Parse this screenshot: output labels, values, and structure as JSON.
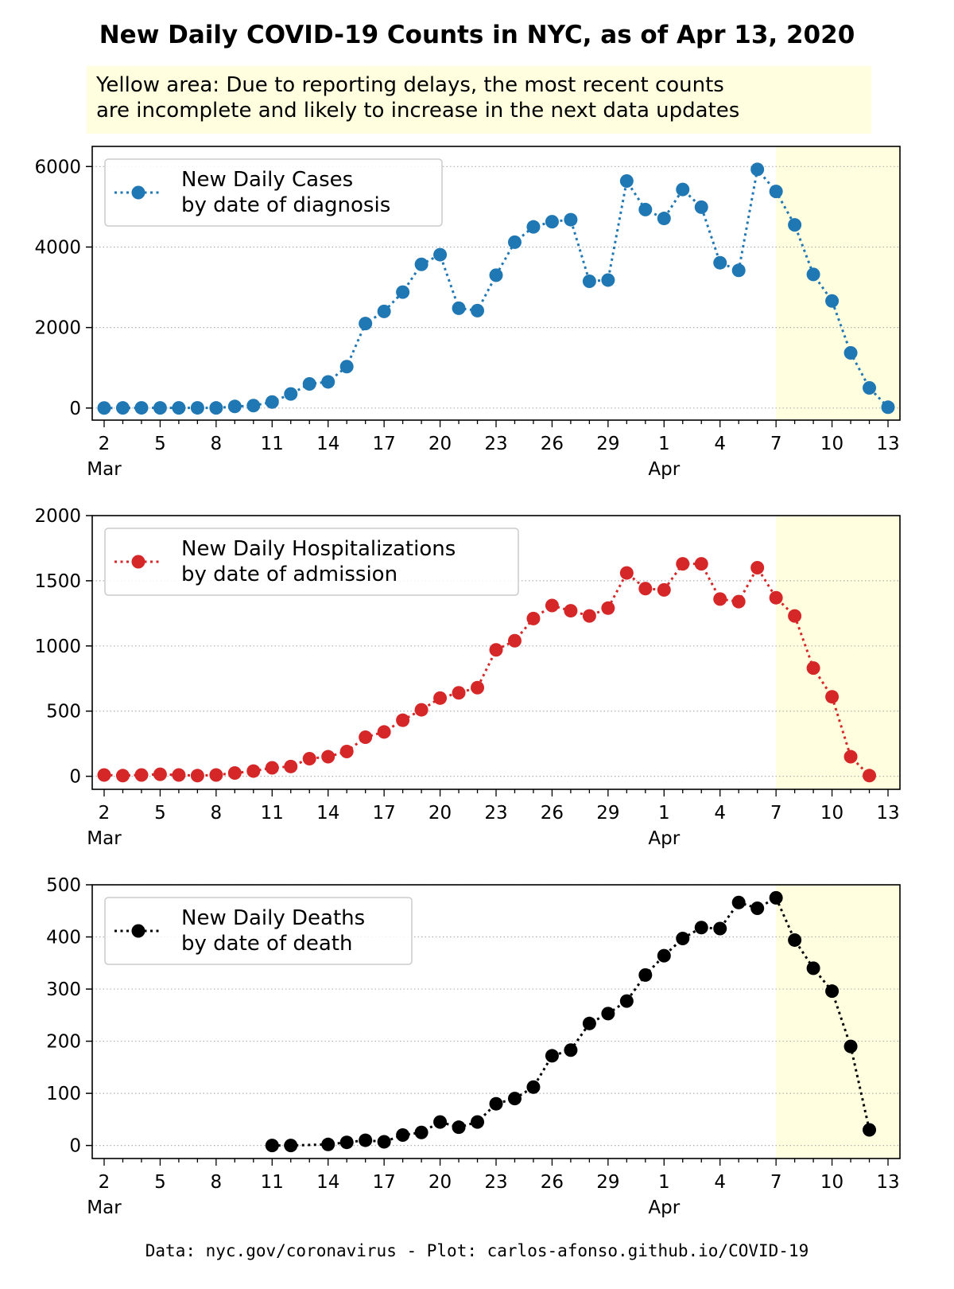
{
  "title": "New Daily COVID-19 Counts in NYC, as of Apr 13, 2020",
  "note": {
    "line1": "Yellow area: Due to reporting delays, the most recent counts",
    "line2": "are incomplete and likely to increase in the next data updates"
  },
  "footer": "Data: nyc.gov/coronavirus - Plot: carlos-afonso.github.io/COVID-19",
  "colors": {
    "cases": "#1f77b4",
    "hospitalizations": "#d62728",
    "deaths": "#000000",
    "incomplete_area": "#ffffe0",
    "grid": "#b0b0b0"
  },
  "chart_data": [
    {
      "type": "line",
      "marker": "circle",
      "linestyle": "dotted",
      "x": [
        "2020-03-02",
        "2020-03-03",
        "2020-03-04",
        "2020-03-05",
        "2020-03-06",
        "2020-03-07",
        "2020-03-08",
        "2020-03-09",
        "2020-03-10",
        "2020-03-11",
        "2020-03-12",
        "2020-03-13",
        "2020-03-14",
        "2020-03-15",
        "2020-03-16",
        "2020-03-17",
        "2020-03-18",
        "2020-03-19",
        "2020-03-20",
        "2020-03-21",
        "2020-03-22",
        "2020-03-23",
        "2020-03-24",
        "2020-03-25",
        "2020-03-26",
        "2020-03-27",
        "2020-03-28",
        "2020-03-29",
        "2020-03-30",
        "2020-03-31",
        "2020-04-01",
        "2020-04-02",
        "2020-04-03",
        "2020-04-04",
        "2020-04-05",
        "2020-04-06",
        "2020-04-07",
        "2020-04-08",
        "2020-04-09",
        "2020-04-10",
        "2020-04-11",
        "2020-04-12",
        "2020-04-13"
      ],
      "series": [
        {
          "name": "New Daily Cases by date of diagnosis",
          "legend_lines": [
            "New Daily Cases",
            "by date of diagnosis"
          ],
          "color": "#1f77b4",
          "values": [
            1,
            3,
            5,
            3,
            4,
            5,
            3,
            40,
            60,
            150,
            350,
            600,
            650,
            1030,
            2100,
            2400,
            2880,
            3570,
            3810,
            2480,
            2420,
            3300,
            4120,
            4500,
            4630,
            4680,
            3150,
            3180,
            5640,
            4930,
            4710,
            5430,
            4990,
            3610,
            3420,
            5930,
            5380,
            4550,
            3320,
            2660,
            1370,
            500,
            20
          ]
        }
      ],
      "xticks": [
        "2",
        "5",
        "8",
        "11",
        "14",
        "17",
        "20",
        "23",
        "26",
        "29",
        "1",
        "4",
        "7",
        "10",
        "13"
      ],
      "xtick_months": [
        "Mar",
        "Apr"
      ],
      "ylim": [
        -300,
        6500
      ],
      "yticks": [
        0,
        2000,
        4000,
        6000
      ],
      "ytick_labels": [
        "0",
        "2000",
        "4000",
        "6000"
      ],
      "incomplete_from": "2020-04-07",
      "grid": "y-dotted",
      "legend": "upper-left"
    },
    {
      "type": "line",
      "marker": "circle",
      "linestyle": "dotted",
      "x": [
        "2020-03-02",
        "2020-03-03",
        "2020-03-04",
        "2020-03-05",
        "2020-03-06",
        "2020-03-07",
        "2020-03-08",
        "2020-03-09",
        "2020-03-10",
        "2020-03-11",
        "2020-03-12",
        "2020-03-13",
        "2020-03-14",
        "2020-03-15",
        "2020-03-16",
        "2020-03-17",
        "2020-03-18",
        "2020-03-19",
        "2020-03-20",
        "2020-03-21",
        "2020-03-22",
        "2020-03-23",
        "2020-03-24",
        "2020-03-25",
        "2020-03-26",
        "2020-03-27",
        "2020-03-28",
        "2020-03-29",
        "2020-03-30",
        "2020-03-31",
        "2020-04-01",
        "2020-04-02",
        "2020-04-03",
        "2020-04-04",
        "2020-04-05",
        "2020-04-06",
        "2020-04-07",
        "2020-04-08",
        "2020-04-09",
        "2020-04-10",
        "2020-04-11",
        "2020-04-12"
      ],
      "series": [
        {
          "name": "New Daily Hospitalizations by date of admission",
          "legend_lines": [
            "New Daily Hospitalizations",
            "by date of admission"
          ],
          "color": "#d62728",
          "values": [
            10,
            5,
            10,
            15,
            10,
            5,
            10,
            25,
            40,
            65,
            75,
            135,
            150,
            190,
            300,
            340,
            430,
            510,
            600,
            640,
            680,
            970,
            1040,
            1210,
            1310,
            1270,
            1230,
            1290,
            1560,
            1440,
            1430,
            1630,
            1630,
            1360,
            1340,
            1600,
            1370,
            1230,
            830,
            610,
            150,
            5
          ]
        }
      ],
      "xticks": [
        "2",
        "5",
        "8",
        "11",
        "14",
        "17",
        "20",
        "23",
        "26",
        "29",
        "1",
        "4",
        "7",
        "10",
        "13"
      ],
      "xtick_months": [
        "Mar",
        "Apr"
      ],
      "ylim": [
        -100,
        2000
      ],
      "yticks": [
        0,
        500,
        1000,
        1500,
        2000
      ],
      "ytick_labels": [
        "0",
        "500",
        "1000",
        "1500",
        "2000"
      ],
      "incomplete_from": "2020-04-07",
      "grid": "y-dotted",
      "legend": "upper-left"
    },
    {
      "type": "line",
      "marker": "circle",
      "linestyle": "dotted",
      "x": [
        "2020-03-11",
        "2020-03-12",
        "2020-03-14",
        "2020-03-15",
        "2020-03-16",
        "2020-03-17",
        "2020-03-18",
        "2020-03-19",
        "2020-03-20",
        "2020-03-21",
        "2020-03-22",
        "2020-03-23",
        "2020-03-24",
        "2020-03-25",
        "2020-03-26",
        "2020-03-27",
        "2020-03-28",
        "2020-03-29",
        "2020-03-30",
        "2020-03-31",
        "2020-04-01",
        "2020-04-02",
        "2020-04-03",
        "2020-04-04",
        "2020-04-05",
        "2020-04-06",
        "2020-04-07",
        "2020-04-08",
        "2020-04-09",
        "2020-04-10",
        "2020-04-11",
        "2020-04-12"
      ],
      "series": [
        {
          "name": "New Daily Deaths by date of death",
          "legend_lines": [
            "New Daily Deaths",
            "by date of death"
          ],
          "color": "#000000",
          "values": [
            0,
            0,
            2,
            6,
            10,
            7,
            20,
            25,
            45,
            35,
            45,
            80,
            90,
            112,
            172,
            183,
            234,
            253,
            277,
            327,
            364,
            397,
            418,
            416,
            466,
            455,
            475,
            394,
            340,
            296,
            190,
            30
          ]
        }
      ],
      "xticks": [
        "2",
        "5",
        "8",
        "11",
        "14",
        "17",
        "20",
        "23",
        "26",
        "29",
        "1",
        "4",
        "7",
        "10",
        "13"
      ],
      "xtick_months": [
        "Mar",
        "Apr"
      ],
      "ylim": [
        -25,
        500
      ],
      "yticks": [
        0,
        100,
        200,
        300,
        400,
        500
      ],
      "ytick_labels": [
        "0",
        "100",
        "200",
        "300",
        "400",
        "500"
      ],
      "incomplete_from": "2020-04-07",
      "grid": "y-dotted",
      "legend": "upper-left"
    }
  ]
}
